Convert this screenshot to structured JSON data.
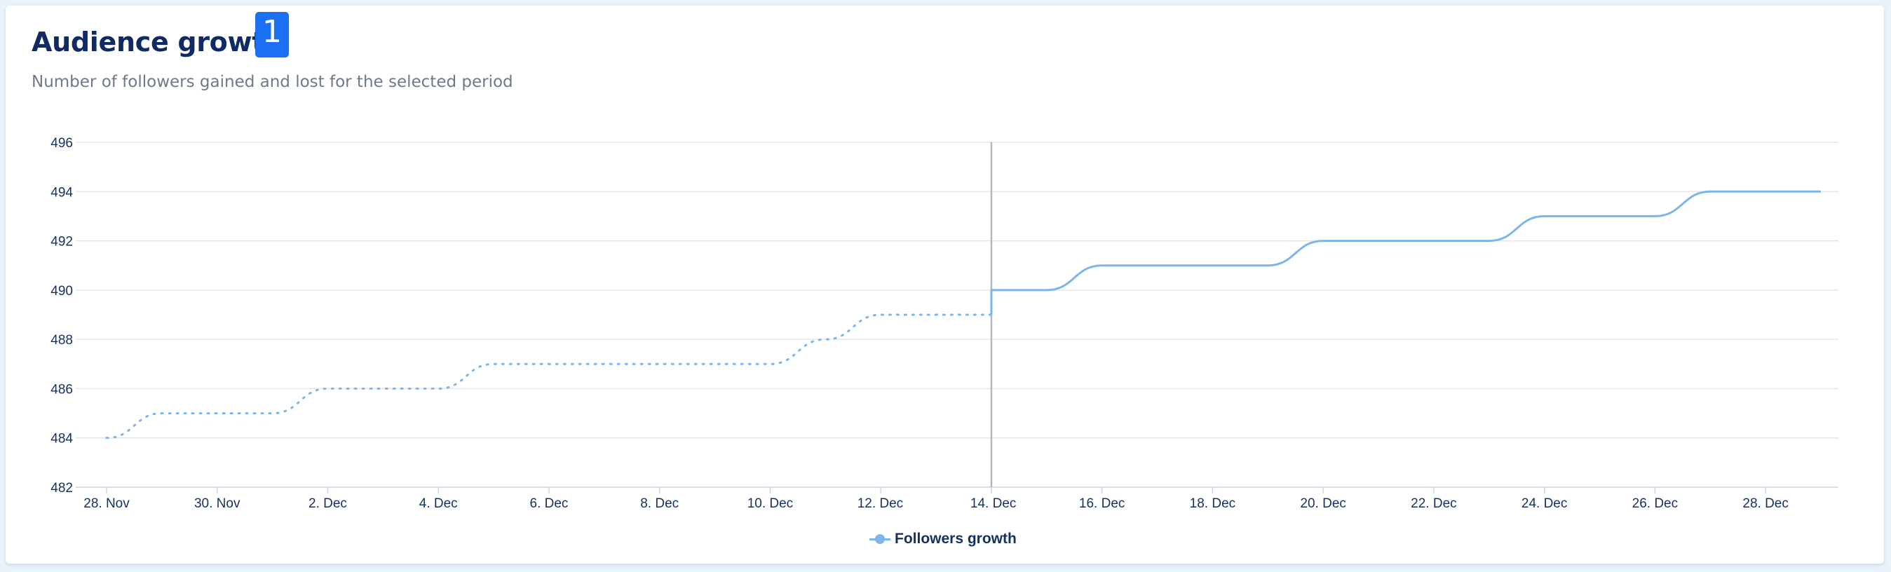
{
  "header": {
    "title": "Audience growth",
    "badge": "1",
    "subtitle": "Number of followers gained and lost for the selected period"
  },
  "colors": {
    "series": "#7cb5ec",
    "grid": "#e6e6e6",
    "text": "#14315e",
    "badge": "#1a6ff2",
    "divider": "#b0b8c4"
  },
  "chart_data": {
    "type": "line",
    "title": "Audience growth",
    "subtitle": "Number of followers gained and lost for the selected period",
    "xlabel": "",
    "ylabel": "",
    "ylim": [
      482,
      496
    ],
    "yticks": [
      482,
      484,
      486,
      488,
      490,
      492,
      494,
      496
    ],
    "xrange": [
      "2023-11-28",
      "2023-12-29"
    ],
    "xticks": [
      {
        "date": "2023-11-28",
        "label": "28. Nov"
      },
      {
        "date": "2023-11-30",
        "label": "30. Nov"
      },
      {
        "date": "2023-12-02",
        "label": "2. Dec"
      },
      {
        "date": "2023-12-04",
        "label": "4. Dec"
      },
      {
        "date": "2023-12-06",
        "label": "6. Dec"
      },
      {
        "date": "2023-12-08",
        "label": "8. Dec"
      },
      {
        "date": "2023-12-10",
        "label": "10. Dec"
      },
      {
        "date": "2023-12-12",
        "label": "12. Dec"
      },
      {
        "date": "2023-12-14",
        "label": "14. Dec"
      },
      {
        "date": "2023-12-16",
        "label": "16. Dec"
      },
      {
        "date": "2023-12-18",
        "label": "18. Dec"
      },
      {
        "date": "2023-12-20",
        "label": "20. Dec"
      },
      {
        "date": "2023-12-22",
        "label": "22. Dec"
      },
      {
        "date": "2023-12-24",
        "label": "24. Dec"
      },
      {
        "date": "2023-12-26",
        "label": "26. Dec"
      },
      {
        "date": "2023-12-28",
        "label": "28. Dec"
      }
    ],
    "divider_date": "2023-12-14",
    "legend_position": "bottom-center",
    "grid": true,
    "series": [
      {
        "name": "Followers growth",
        "points": [
          {
            "x": "2023-11-28",
            "y": 484
          },
          {
            "x": "2023-11-29",
            "y": 485
          },
          {
            "x": "2023-11-30",
            "y": 485
          },
          {
            "x": "2023-12-01",
            "y": 485
          },
          {
            "x": "2023-12-02",
            "y": 486
          },
          {
            "x": "2023-12-03",
            "y": 486
          },
          {
            "x": "2023-12-04",
            "y": 486
          },
          {
            "x": "2023-12-05",
            "y": 487
          },
          {
            "x": "2023-12-06",
            "y": 487
          },
          {
            "x": "2023-12-07",
            "y": 487
          },
          {
            "x": "2023-12-08",
            "y": 487
          },
          {
            "x": "2023-12-09",
            "y": 487
          },
          {
            "x": "2023-12-10",
            "y": 487
          },
          {
            "x": "2023-12-11",
            "y": 488
          },
          {
            "x": "2023-12-12",
            "y": 489
          },
          {
            "x": "2023-12-13",
            "y": 489
          },
          {
            "x": "2023-12-14",
            "y": 489
          },
          {
            "x": "2023-12-14",
            "y": 490
          },
          {
            "x": "2023-12-15",
            "y": 490
          },
          {
            "x": "2023-12-16",
            "y": 491
          },
          {
            "x": "2023-12-17",
            "y": 491
          },
          {
            "x": "2023-12-18",
            "y": 491
          },
          {
            "x": "2023-12-19",
            "y": 491
          },
          {
            "x": "2023-12-20",
            "y": 492
          },
          {
            "x": "2023-12-21",
            "y": 492
          },
          {
            "x": "2023-12-22",
            "y": 492
          },
          {
            "x": "2023-12-23",
            "y": 492
          },
          {
            "x": "2023-12-24",
            "y": 493
          },
          {
            "x": "2023-12-25",
            "y": 493
          },
          {
            "x": "2023-12-26",
            "y": 493
          },
          {
            "x": "2023-12-27",
            "y": 494
          },
          {
            "x": "2023-12-28",
            "y": 494
          },
          {
            "x": "2023-12-29",
            "y": 494
          }
        ]
      }
    ]
  }
}
